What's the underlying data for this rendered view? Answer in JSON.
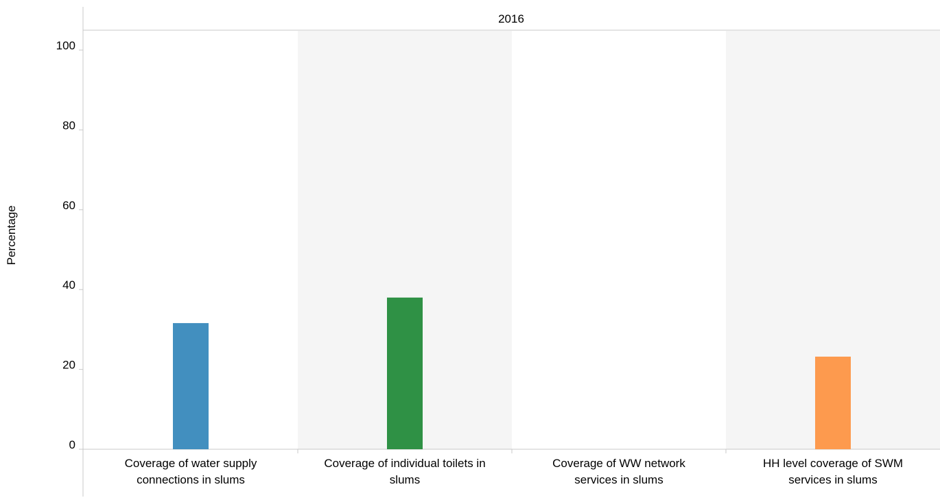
{
  "chart_data": {
    "type": "bar",
    "panel_header": "2016",
    "ylabel": "Percentage",
    "xlabel": "",
    "ylim": [
      0,
      100
    ],
    "yticks": [
      0,
      20,
      40,
      60,
      80,
      100
    ],
    "grid": false,
    "alternating_band_color": "#f5f5f5",
    "categories": [
      {
        "label_lines": [
          "Coverage of water supply",
          "connections in slums"
        ],
        "value": 31.6,
        "color": "#428fbf"
      },
      {
        "label_lines": [
          "Coverage of individual toilets in",
          "slums"
        ],
        "value": 38.0,
        "color": "#2f9145"
      },
      {
        "label_lines": [
          "Coverage of WW network",
          "services in slums"
        ],
        "value": 0,
        "color": "#d6d6d6"
      },
      {
        "label_lines": [
          "HH level coverage of SWM",
          "services in slums"
        ],
        "value": 23.2,
        "color": "#fd9a4e"
      }
    ]
  }
}
